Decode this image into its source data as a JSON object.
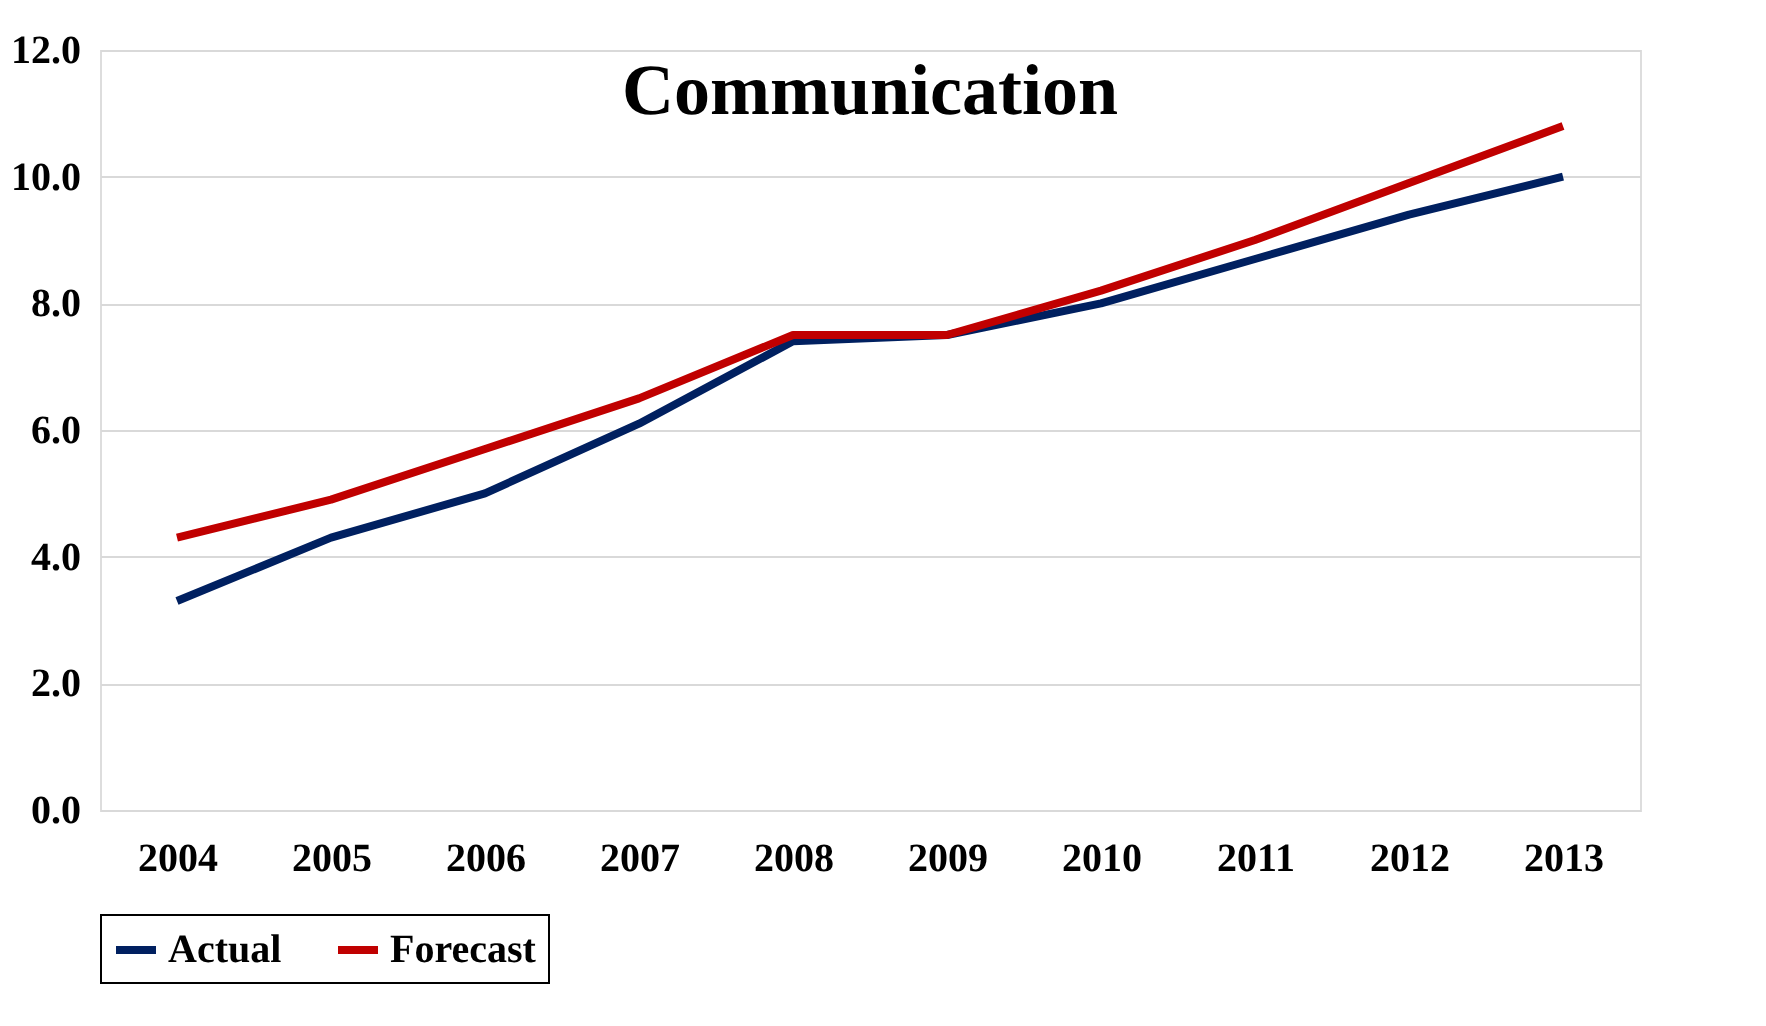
{
  "chart_data": {
    "type": "line",
    "title": "Communication",
    "categories": [
      "2004",
      "2005",
      "2006",
      "2007",
      "2008",
      "2009",
      "2010",
      "2011",
      "2012",
      "2013"
    ],
    "series": [
      {
        "name": "Actual",
        "color": "#002060",
        "values": [
          3.3,
          4.3,
          5.0,
          6.1,
          7.4,
          7.5,
          8.0,
          8.7,
          9.4,
          10.0
        ]
      },
      {
        "name": "Forecast",
        "color": "#c00000",
        "values": [
          4.3,
          4.9,
          5.7,
          6.5,
          7.5,
          7.5,
          8.2,
          9.0,
          9.9,
          10.8
        ]
      }
    ],
    "ylim": [
      0,
      12
    ],
    "yticks": [
      {
        "value": 0,
        "label": "0.0"
      },
      {
        "value": 2,
        "label": "2.0"
      },
      {
        "value": 4,
        "label": "4.0"
      },
      {
        "value": 6,
        "label": "6.0"
      },
      {
        "value": 8,
        "label": "8.0"
      },
      {
        "value": 10,
        "label": "10.0"
      },
      {
        "value": 12,
        "label": "12.0"
      }
    ],
    "grid": "y",
    "legend": "bottom",
    "marker": "none",
    "line_style": "solid"
  }
}
